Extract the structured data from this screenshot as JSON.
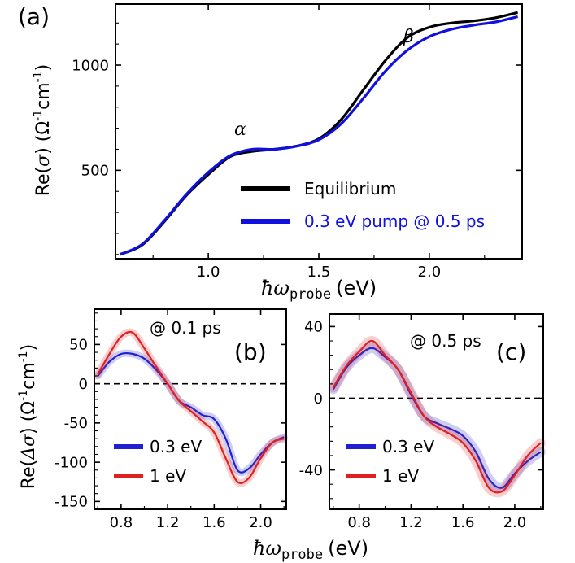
{
  "chart_data": [
    {
      "panel": "(a)",
      "type": "line",
      "title": "",
      "xlabel": {
        "hbar_omega": "ħω",
        "subscript": "probe",
        "unit": "(eV)"
      },
      "ylabel": {
        "prefix": "Re(",
        "sigma": "σ",
        "suffix": ") (Ω",
        "exp1": "-1",
        "cm": "cm",
        "exp2": "-1",
        "close": ")"
      },
      "xlim": [
        0.58,
        2.42
      ],
      "ylim": [
        80,
        1290
      ],
      "xticks": [
        1.0,
        1.5,
        2.0
      ],
      "xtick_labels": [
        "1.0",
        "1.5",
        "2.0"
      ],
      "yticks": [
        500,
        1000
      ],
      "ytick_labels": [
        "500",
        "1000"
      ],
      "annotations": {
        "alpha": "α",
        "beta": "β"
      },
      "legend": [
        "Equilibrium",
        "0.3 eV pump @ 0.5 ps"
      ],
      "colors": [
        "#000000",
        "#1010e0"
      ],
      "series": [
        {
          "name": "Equilibrium",
          "x": [
            0.6,
            0.7,
            0.8,
            0.9,
            1.0,
            1.1,
            1.2,
            1.3,
            1.4,
            1.5,
            1.6,
            1.7,
            1.8,
            1.9,
            2.0,
            2.1,
            2.2,
            2.3,
            2.4
          ],
          "y": [
            100,
            145,
            255,
            380,
            480,
            565,
            590,
            600,
            615,
            650,
            740,
            880,
            1020,
            1130,
            1180,
            1200,
            1210,
            1225,
            1250
          ]
        },
        {
          "name": "0.3 eV pump @ 0.5 ps",
          "x": [
            0.6,
            0.7,
            0.8,
            0.9,
            1.0,
            1.1,
            1.2,
            1.3,
            1.4,
            1.5,
            1.6,
            1.7,
            1.8,
            1.9,
            2.0,
            2.1,
            2.2,
            2.3,
            2.4
          ],
          "y": [
            100,
            148,
            260,
            385,
            490,
            570,
            600,
            600,
            615,
            645,
            720,
            840,
            970,
            1070,
            1135,
            1170,
            1190,
            1205,
            1230
          ]
        }
      ]
    },
    {
      "panel": "(b)",
      "type": "line",
      "title": "@ 0.1 ps",
      "xlabel": {
        "hbar_omega": "ħω",
        "subscript": "probe",
        "unit": "(eV)"
      },
      "ylabel": {
        "prefix": "Re(",
        "delta_sigma": "Δσ",
        "suffix": ") (Ω",
        "exp1": "-1",
        "cm": "cm",
        "exp2": "-1",
        "close": ")"
      },
      "xlim": [
        0.57,
        2.22
      ],
      "ylim": [
        -160,
        95
      ],
      "xticks": [
        0.8,
        1.2,
        1.6,
        2.0
      ],
      "xtick_labels": [
        "0.8",
        "1.2",
        "1.6",
        "2.0"
      ],
      "yticks": [
        50,
        0,
        -50,
        -100,
        -150
      ],
      "ytick_labels": [
        "50",
        "0",
        "-50",
        "-100",
        "-150"
      ],
      "legend": [
        "0.3 eV",
        "1 eV"
      ],
      "colors": [
        "#2020d0",
        "#e02020"
      ],
      "series": [
        {
          "name": "0.3 eV",
          "x": [
            0.6,
            0.7,
            0.8,
            0.9,
            1.0,
            1.1,
            1.2,
            1.3,
            1.4,
            1.5,
            1.6,
            1.7,
            1.8,
            1.9,
            2.0,
            2.1,
            2.2
          ],
          "y": [
            10,
            28,
            38,
            38,
            32,
            18,
            0,
            -22,
            -30,
            -40,
            -45,
            -70,
            -110,
            -108,
            -90,
            -75,
            -68
          ]
        },
        {
          "name": "1 eV",
          "x": [
            0.6,
            0.7,
            0.8,
            0.9,
            1.0,
            1.1,
            1.2,
            1.3,
            1.4,
            1.5,
            1.6,
            1.7,
            1.8,
            1.9,
            2.0,
            2.1,
            2.2
          ],
          "y": [
            12,
            38,
            60,
            65,
            45,
            22,
            0,
            -22,
            -35,
            -48,
            -62,
            -95,
            -125,
            -120,
            -95,
            -75,
            -70
          ]
        }
      ]
    },
    {
      "panel": "(c)",
      "type": "line",
      "title": "@ 0.5 ps",
      "xlabel": {
        "hbar_omega": "ħω",
        "subscript": "probe",
        "unit": "(eV)"
      },
      "xlim": [
        0.57,
        2.22
      ],
      "ylim": [
        -62,
        47
      ],
      "xticks": [
        0.8,
        1.2,
        1.6,
        2.0
      ],
      "xtick_labels": [
        "0.8",
        "1.2",
        "1.6",
        "2.0"
      ],
      "yticks": [
        40,
        0,
        -40
      ],
      "ytick_labels": [
        "40",
        "0",
        "-40"
      ],
      "legend": [
        "0.3 eV",
        "1 eV"
      ],
      "colors": [
        "#2020d0",
        "#e02020"
      ],
      "series": [
        {
          "name": "0.3 eV",
          "x": [
            0.6,
            0.7,
            0.8,
            0.9,
            1.0,
            1.1,
            1.2,
            1.3,
            1.4,
            1.5,
            1.6,
            1.7,
            1.8,
            1.9,
            2.0,
            2.1,
            2.2
          ],
          "y": [
            5,
            17,
            24,
            28,
            23,
            16,
            2,
            -10,
            -14,
            -17,
            -21,
            -30,
            -45,
            -50,
            -42,
            -35,
            -30
          ]
        },
        {
          "name": "1 eV",
          "x": [
            0.6,
            0.7,
            0.8,
            0.9,
            1.0,
            1.1,
            1.2,
            1.3,
            1.4,
            1.5,
            1.6,
            1.7,
            1.8,
            1.9,
            2.0,
            2.1,
            2.2
          ],
          "y": [
            6,
            18,
            26,
            32,
            24,
            16,
            3,
            -10,
            -16,
            -20,
            -25,
            -35,
            -50,
            -52,
            -43,
            -32,
            -25
          ]
        }
      ]
    }
  ]
}
